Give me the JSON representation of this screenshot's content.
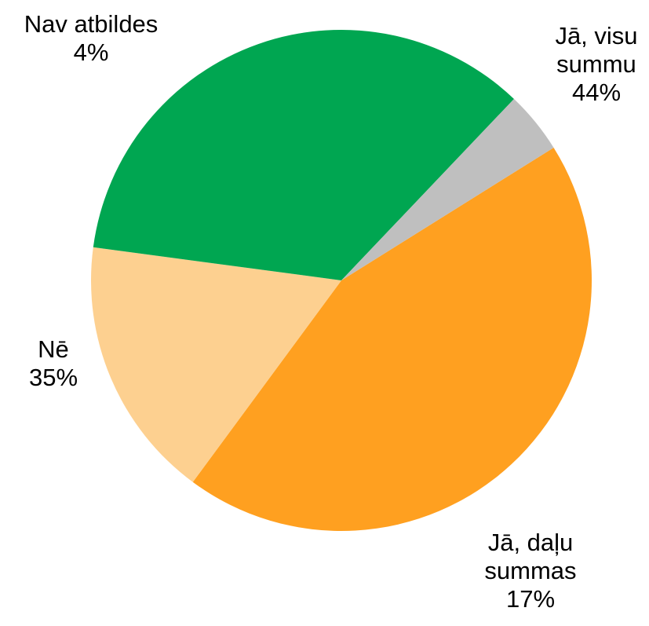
{
  "chart_data": {
    "type": "pie",
    "start_angle_deg": 58,
    "direction": "clockwise",
    "legend": "none",
    "slices": [
      {
        "name": "Jā, visu summu",
        "label_lines": [
          "Jā, visu",
          "summu",
          "44%"
        ],
        "value": 44,
        "color": "#FFA020"
      },
      {
        "name": "Jā, daļu summas",
        "label_lines": [
          "Jā, daļu",
          "summas",
          "17%"
        ],
        "value": 17,
        "color": "#FDD090"
      },
      {
        "name": "Nē",
        "label_lines": [
          "Nē",
          "35%"
        ],
        "value": 35,
        "color": "#00A651"
      },
      {
        "name": "Nav atbildes",
        "label_lines": [
          "Nav atbildes",
          "4%"
        ],
        "value": 4,
        "color": "#BFBFBF"
      }
    ]
  }
}
